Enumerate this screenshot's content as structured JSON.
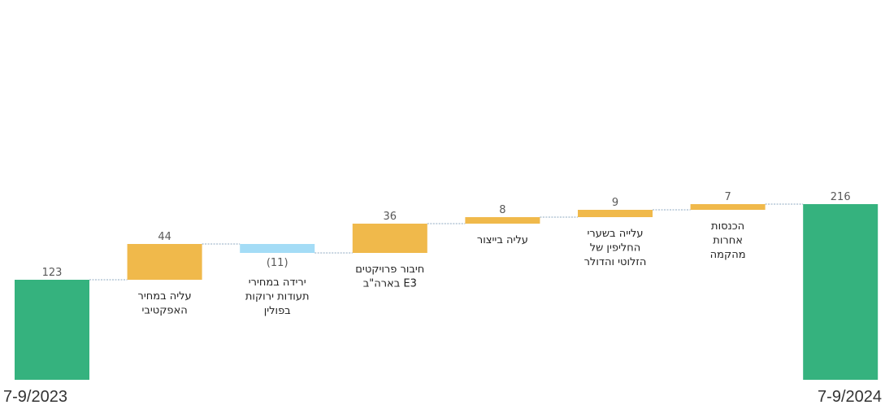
{
  "chart_data": {
    "type": "waterfall",
    "title": "",
    "xlabel": "",
    "ylabel": "",
    "ylim": [
      0,
      216
    ],
    "grid": false,
    "legend": "none",
    "steps": [
      {
        "kind": "total",
        "value": 123,
        "value_label": "123",
        "category": "7-9/2023",
        "label_lines": []
      },
      {
        "kind": "increase",
        "value": 44,
        "value_label": "44",
        "category": "עליה במחיר האפקטיבי",
        "label_lines": [
          "עליה במחיר",
          "האפקטיבי"
        ]
      },
      {
        "kind": "decrease",
        "value": -11,
        "value_label": "(11)",
        "category": "ירידה במחירי תעודות ירוקות בפולין",
        "label_lines": [
          "ירידה במחירי",
          "תעודות ירוקות",
          "בפולין"
        ]
      },
      {
        "kind": "increase",
        "value": 36,
        "value_label": "36",
        "category": "חיבור פרויקטים E3 בארה\"ב",
        "label_lines": [
          "חיבור פרויקטים",
          "E3 בארה\"ב"
        ]
      },
      {
        "kind": "increase",
        "value": 8,
        "value_label": "8",
        "category": "עליה בייצור",
        "label_lines": [
          "עליה בייצור"
        ]
      },
      {
        "kind": "increase",
        "value": 9,
        "value_label": "9",
        "category": "עלייה בשערי החליפין של הזלוטי והדולר",
        "label_lines": [
          "עלייה בשערי",
          "החליפין של",
          "הזלוטי והדולר"
        ]
      },
      {
        "kind": "increase",
        "value": 7,
        "value_label": "7",
        "category": "הכנסות אחרות מהקמה",
        "label_lines": [
          "הכנסות",
          "אחרות",
          "מהקמה"
        ]
      },
      {
        "kind": "total",
        "value": 216,
        "value_label": "216",
        "category": "7-9/2024",
        "label_lines": []
      }
    ],
    "colors": {
      "total": "#35B27E",
      "increase": "#F0B94B",
      "decrease": "#A4DCF6",
      "connector": "#8EA9C1"
    }
  }
}
